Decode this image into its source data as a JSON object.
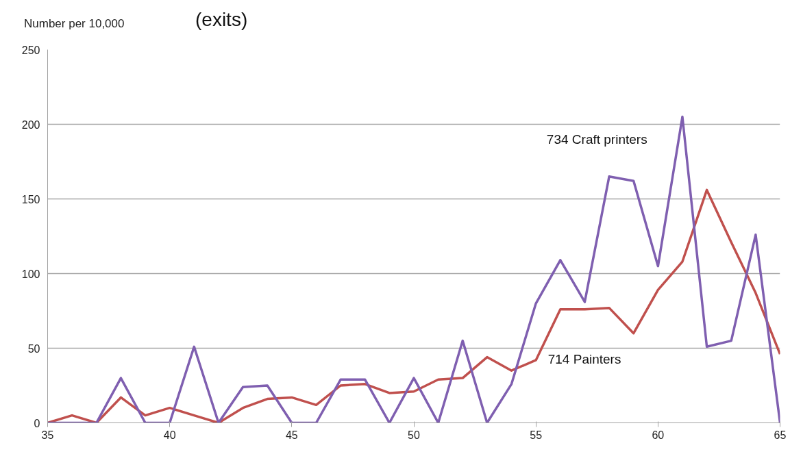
{
  "chart_data": {
    "type": "line",
    "ylabel": "Number per 10,000",
    "x": [
      35,
      36,
      37,
      38,
      39,
      40,
      41,
      42,
      43,
      44,
      45,
      46,
      47,
      48,
      49,
      50,
      51,
      52,
      53,
      54,
      55,
      56,
      57,
      58,
      59,
      60,
      61,
      62,
      63,
      64,
      65
    ],
    "series": [
      {
        "name": "714 Painters",
        "color": "#c0504d",
        "values": [
          0,
          5,
          0,
          17,
          5,
          10,
          5,
          0,
          10,
          16,
          17,
          12,
          25,
          26,
          20,
          21,
          29,
          30,
          44,
          35,
          42,
          76,
          76,
          77,
          60,
          89,
          108,
          156,
          121,
          87,
          46
        ]
      },
      {
        "name": "734 Craft printers",
        "color": "#7f5fb0",
        "values": [
          0,
          0,
          0,
          30,
          0,
          0,
          51,
          0,
          24,
          25,
          0,
          0,
          29,
          29,
          0,
          30,
          0,
          55,
          0,
          26,
          80,
          109,
          81,
          165,
          162,
          105,
          205,
          51,
          55,
          126,
          0
        ]
      }
    ],
    "annotations": [
      "(exits)"
    ],
    "xlim": [
      35,
      65
    ],
    "ylim": [
      0,
      250
    ],
    "xticks": [
      35,
      40,
      45,
      50,
      55,
      60,
      65
    ],
    "yticks": [
      0,
      50,
      100,
      150,
      200,
      250
    ],
    "grid": "y",
    "marker": "none",
    "line_style": "solid"
  }
}
